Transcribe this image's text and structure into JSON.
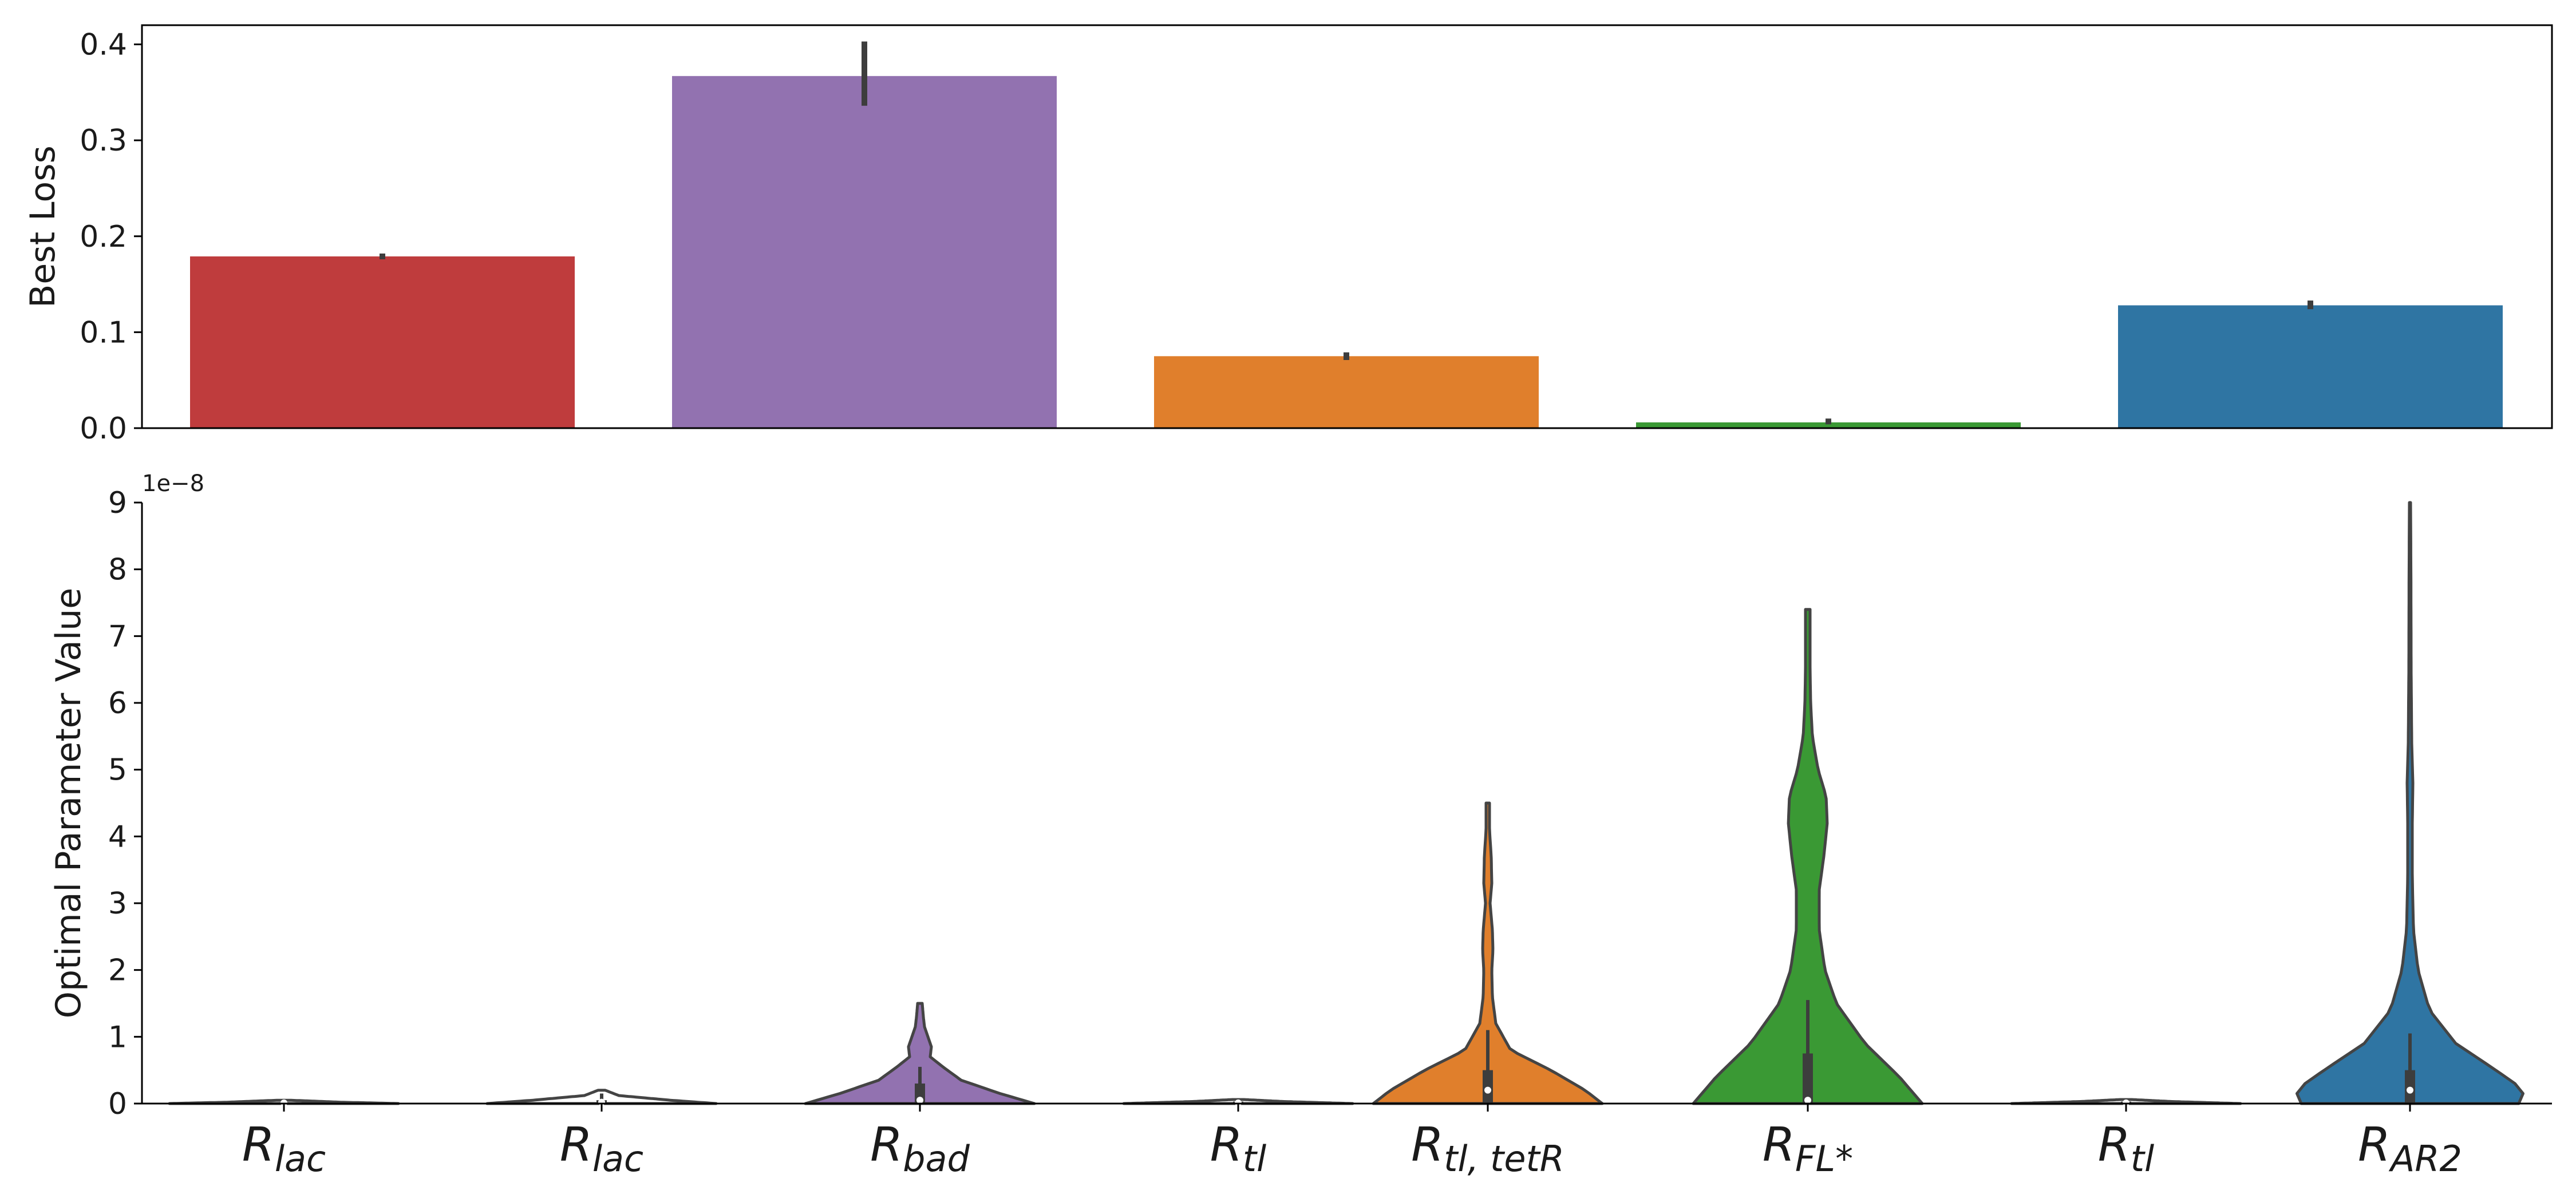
{
  "chart_data": [
    {
      "type": "bar",
      "ylabel": "Best Loss",
      "ylim": [
        0,
        0.42
      ],
      "yticks": [
        0.0,
        0.1,
        0.2,
        0.3,
        0.4
      ],
      "ytick_labels": [
        "0.0",
        "0.1",
        "0.2",
        "0.3",
        "0.4"
      ],
      "grid": false,
      "categories": [
        "bar-1",
        "bar-2",
        "bar-3",
        "bar-4",
        "bar-5"
      ],
      "values": [
        0.179,
        0.367,
        0.075,
        0.006,
        0.128
      ],
      "error": [
        [
          0.176,
          0.182
        ],
        [
          0.336,
          0.403
        ],
        [
          0.071,
          0.079
        ],
        [
          0.004,
          0.01
        ],
        [
          0.124,
          0.133
        ]
      ],
      "colors": [
        "#bf3c3d",
        "#9272b0",
        "#e07f2c",
        "#3a9934",
        "#2f75a3"
      ]
    },
    {
      "type": "violin",
      "ylabel": "Optimal Parameter Value",
      "ylim": [
        0,
        9e-08
      ],
      "yticks": [
        0,
        1,
        2,
        3,
        4,
        5,
        6,
        7,
        8,
        9
      ],
      "ytick_labels": [
        "0",
        "1",
        "2",
        "3",
        "4",
        "5",
        "6",
        "7",
        "8",
        "9"
      ],
      "offset_text": "1e−8",
      "grid": false,
      "categories": [
        {
          "main": "R",
          "sub": "lac"
        },
        {
          "main": "R",
          "sub": "lac"
        },
        {
          "main": "R",
          "sub": "bad"
        },
        {
          "main": "R",
          "sub": "tl"
        },
        {
          "main": "R",
          "sub": "tl, tetR"
        },
        {
          "main": "R",
          "sub": "FL*"
        },
        {
          "main": "R",
          "sub": "tl"
        },
        {
          "main": "R",
          "sub": "AR2"
        }
      ],
      "violins": [
        {
          "color": "#ffffff",
          "max": 0.05,
          "median": 0.01,
          "q1": 0.0,
          "q3": 0.02,
          "whisker": 0.04,
          "profile": [
            [
              0,
              1.0
            ],
            [
              0.02,
              0.5
            ],
            [
              0.05,
              0.05
            ]
          ]
        },
        {
          "color": "#ffffff",
          "max": 0.2,
          "median": 0.02,
          "q1": 0.0,
          "q3": 0.05,
          "whisker": 0.15,
          "profile": [
            [
              0,
              1.0
            ],
            [
              0.05,
              0.6
            ],
            [
              0.12,
              0.15
            ],
            [
              0.2,
              0.03
            ]
          ]
        },
        {
          "color": "#9272b0",
          "max": 1.5,
          "median": 0.05,
          "q1": 0.0,
          "q3": 0.3,
          "whisker": 0.55,
          "profile": [
            [
              0,
              1.0
            ],
            [
              0.15,
              0.7
            ],
            [
              0.35,
              0.36
            ],
            [
              0.55,
              0.2
            ],
            [
              0.7,
              0.09
            ],
            [
              0.85,
              0.1
            ],
            [
              1.0,
              0.07
            ],
            [
              1.15,
              0.04
            ],
            [
              1.3,
              0.03
            ],
            [
              1.5,
              0.02
            ]
          ]
        },
        {
          "color": "#ffffff",
          "max": 0.06,
          "median": 0.01,
          "q1": 0.0,
          "q3": 0.03,
          "whisker": 0.05,
          "profile": [
            [
              0,
              1.0
            ],
            [
              0.03,
              0.4
            ],
            [
              0.06,
              0.05
            ]
          ]
        },
        {
          "color": "#e07f2c",
          "max": 4.5,
          "median": 0.2,
          "q1": 0.0,
          "q3": 0.5,
          "whisker": 1.1,
          "profile": [
            [
              0,
              1.0
            ],
            [
              0.2,
              0.85
            ],
            [
              0.5,
              0.55
            ],
            [
              0.8,
              0.2
            ],
            [
              1.2,
              0.07
            ],
            [
              1.6,
              0.04
            ],
            [
              2.0,
              0.035
            ],
            [
              2.3,
              0.045
            ],
            [
              2.6,
              0.04
            ],
            [
              3.0,
              0.02
            ],
            [
              3.3,
              0.035
            ],
            [
              3.7,
              0.03
            ],
            [
              4.1,
              0.015
            ],
            [
              4.5,
              0.015
            ]
          ]
        },
        {
          "color": "#3a9934",
          "max": 7.4,
          "median": 0.05,
          "q1": 0.0,
          "q3": 0.75,
          "whisker": 1.55,
          "profile": [
            [
              0,
              1.0
            ],
            [
              0.4,
              0.8
            ],
            [
              0.9,
              0.5
            ],
            [
              1.5,
              0.25
            ],
            [
              2.0,
              0.15
            ],
            [
              2.6,
              0.1
            ],
            [
              3.2,
              0.1
            ],
            [
              3.7,
              0.14
            ],
            [
              4.2,
              0.17
            ],
            [
              4.6,
              0.16
            ],
            [
              5.0,
              0.09
            ],
            [
              5.5,
              0.04
            ],
            [
              6.0,
              0.025
            ],
            [
              6.5,
              0.02
            ],
            [
              7.0,
              0.02
            ],
            [
              7.4,
              0.02
            ]
          ]
        },
        {
          "color": "#ffffff",
          "max": 0.06,
          "median": 0.01,
          "q1": 0.0,
          "q3": 0.03,
          "whisker": 0.05,
          "profile": [
            [
              0,
              1.0
            ],
            [
              0.03,
              0.4
            ],
            [
              0.06,
              0.05
            ]
          ]
        },
        {
          "color": "#2f75a3",
          "max": 9.0,
          "median": 0.2,
          "q1": 0.0,
          "q3": 0.5,
          "whisker": 1.05,
          "profile": [
            [
              0,
              0.95
            ],
            [
              0.2,
              1.0
            ],
            [
              0.5,
              0.75
            ],
            [
              0.9,
              0.4
            ],
            [
              1.4,
              0.17
            ],
            [
              2.0,
              0.07
            ],
            [
              2.6,
              0.03
            ],
            [
              3.4,
              0.02
            ],
            [
              4.2,
              0.02
            ],
            [
              4.8,
              0.025
            ],
            [
              5.4,
              0.015
            ],
            [
              6.5,
              0.01
            ],
            [
              8.0,
              0.008
            ],
            [
              9.0,
              0.005
            ]
          ]
        }
      ]
    }
  ]
}
